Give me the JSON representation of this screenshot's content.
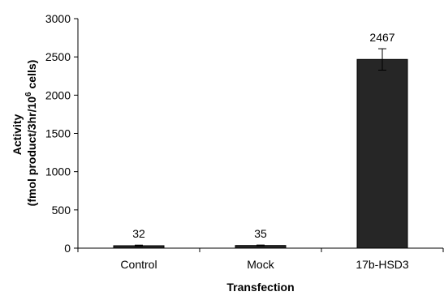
{
  "chart_data": {
    "type": "bar",
    "categories": [
      "Control",
      "Mock",
      "17b-HSD3"
    ],
    "values": [
      32,
      35,
      2467
    ],
    "error": [
      8,
      6,
      140
    ],
    "data_labels": [
      "32",
      "35",
      "2467"
    ],
    "xlabel": "Transfection",
    "ylabel": {
      "line1": "Activity",
      "line2_prefix": "(fmol product/3hr/10",
      "line2_sup": "6",
      "line2_suffix": " cells)"
    },
    "ylim": [
      0,
      3000
    ],
    "yticks": [
      0,
      500,
      1000,
      1500,
      2000,
      2500,
      3000
    ],
    "grid": false,
    "bar_color": "#262626",
    "legend": "none"
  }
}
